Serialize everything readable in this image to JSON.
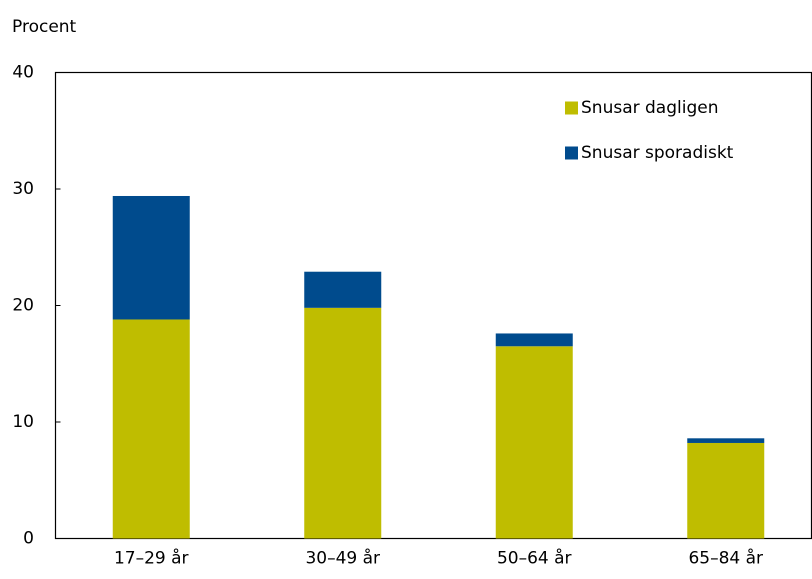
{
  "chart_data": {
    "type": "stacked_bar",
    "y_axis_label": "Procent",
    "categories": [
      "17–29 år",
      "30–49 år",
      "50–64 år",
      "65–84 år"
    ],
    "series": [
      {
        "name": "Snusar dagligen",
        "color": "#bfbd00",
        "values": [
          18.8,
          19.8,
          16.5,
          8.2
        ]
      },
      {
        "name": "Snusar sporadiskt",
        "color": "#004b8d",
        "values": [
          10.6,
          3.1,
          1.1,
          0.4
        ]
      }
    ],
    "ylim": [
      0,
      40
    ],
    "yticks": [
      0,
      10,
      20,
      30,
      40
    ],
    "grid": false,
    "legend": "top-right"
  }
}
